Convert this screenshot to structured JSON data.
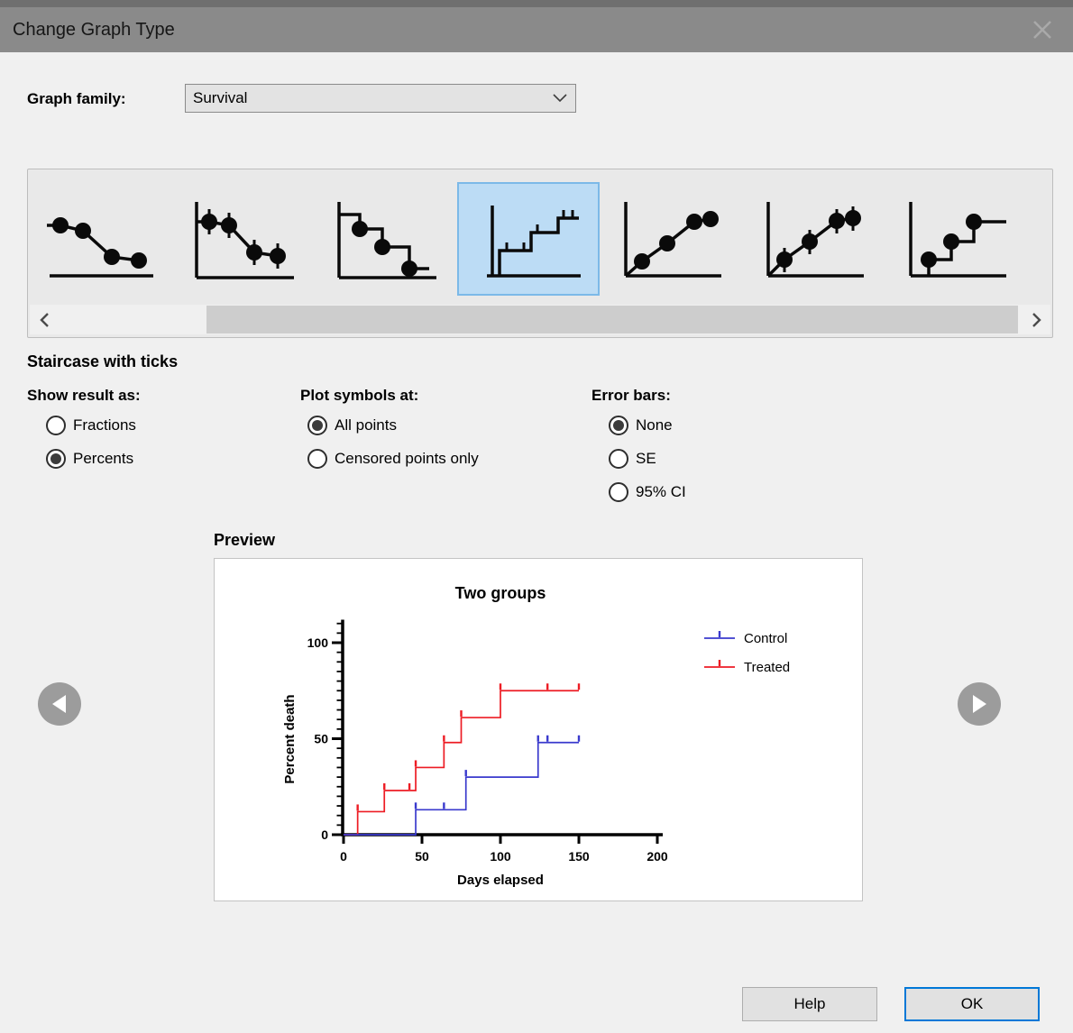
{
  "window": {
    "title": "Change Graph Type"
  },
  "graph_family": {
    "label": "Graph family:",
    "value": "Survival"
  },
  "gallery": {
    "selected_index": 3,
    "items": [
      {
        "icon": "survival-curve-down-symbols",
        "selected": false
      },
      {
        "icon": "survival-curve-down-symbols-error-bars",
        "selected": false
      },
      {
        "icon": "staircase-down-symbols",
        "selected": false
      },
      {
        "icon": "staircase-up-ticks",
        "selected": true
      },
      {
        "icon": "survival-curve-up-symbols",
        "selected": false
      },
      {
        "icon": "survival-curve-up-symbols-error-bars",
        "selected": false
      },
      {
        "icon": "staircase-up-symbols",
        "selected": false
      }
    ]
  },
  "selected_type": {
    "label": "Staircase with ticks"
  },
  "options": {
    "show_result_as": {
      "label": "Show result as:",
      "items": [
        {
          "label": "Fractions",
          "selected": false
        },
        {
          "label": "Percents",
          "selected": true
        }
      ]
    },
    "plot_symbols_at": {
      "label": "Plot symbols at:",
      "items": [
        {
          "label": "All points",
          "selected": true
        },
        {
          "label": "Censored points only",
          "selected": false
        }
      ]
    },
    "error_bars": {
      "label": "Error bars:",
      "items": [
        {
          "label": "None",
          "selected": true
        },
        {
          "label": "SE",
          "selected": false
        },
        {
          "label": "95% CI",
          "selected": false
        }
      ]
    }
  },
  "preview": {
    "label": "Preview"
  },
  "chart_data": {
    "type": "line",
    "style": "survival-staircase-with-ticks",
    "title": "Two groups",
    "xlabel": "Days elapsed",
    "ylabel": "Percent death",
    "xlim": [
      0,
      200
    ],
    "ylim": [
      0,
      100
    ],
    "xticks": [
      0,
      50,
      100,
      150,
      200
    ],
    "yticks": [
      0,
      50,
      100
    ],
    "y_minor_tick_step": 5,
    "y_axis_top": 112,
    "grid": false,
    "legend_position": "right",
    "series": [
      {
        "name": "Treated",
        "color": "#ed1c24",
        "steps": [
          [
            9,
            12
          ],
          [
            26,
            23
          ],
          [
            46,
            35
          ],
          [
            64,
            48
          ],
          [
            75,
            61
          ],
          [
            100,
            75
          ]
        ],
        "end_day": 150,
        "censored": [
          [
            42,
            23
          ],
          [
            130,
            75
          ],
          [
            150,
            75
          ]
        ]
      },
      {
        "name": "Control",
        "color": "#3a3acd",
        "steps": [
          [
            46,
            13
          ],
          [
            78,
            30
          ],
          [
            124,
            48
          ]
        ],
        "end_day": 150,
        "censored": [
          [
            64,
            13
          ],
          [
            130,
            48
          ],
          [
            150,
            48
          ]
        ]
      }
    ],
    "legend": [
      {
        "name": "Control",
        "color": "#3a3acd"
      },
      {
        "name": "Treated",
        "color": "#ed1c24"
      }
    ]
  },
  "footer": {
    "help": "Help",
    "ok": "OK"
  },
  "colors": {
    "accent": "#0078d7",
    "titlebar": "#8a8a8a",
    "selection_bg": "#bcdcf5",
    "selection_border": "#7cb9e8"
  }
}
